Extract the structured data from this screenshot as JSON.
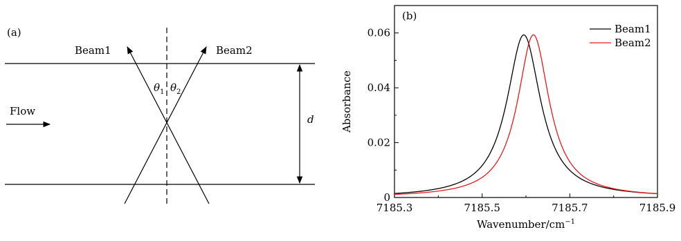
{
  "panel_a": {
    "label": "(a)",
    "beam1_label": "Beam1",
    "beam2_label": "Beam2",
    "flow_label": "Flow",
    "theta1_symbol": "θ",
    "theta1_sub": "1",
    "theta2_symbol": "θ",
    "theta2_sub": "2",
    "distance_label": "d"
  },
  "panel_b": {
    "label": "(b)"
  },
  "chart_data": {
    "type": "line",
    "title": "",
    "xlabel": "Wavenumber/cm",
    "xlabel_superscript": "−1",
    "ylabel": "Absorbance",
    "xlim": [
      7185.3,
      7185.9
    ],
    "ylim": [
      0,
      0.07
    ],
    "x_ticks": [
      7185.3,
      7185.5,
      7185.7,
      7185.9
    ],
    "x_tick_labels": [
      "7185.3",
      "7185.5",
      "7185.7",
      "7185.9"
    ],
    "y_ticks": [
      0,
      0.02,
      0.04,
      0.06
    ],
    "y_tick_labels": [
      "0",
      "0.02",
      "0.04",
      "0.06"
    ],
    "grid": false,
    "legend_position": "top-right",
    "series": [
      {
        "name": "Beam1",
        "color": "#000000",
        "center": 7185.595,
        "hwhm": 0.047,
        "peak": 0.0593
      },
      {
        "name": "Beam2",
        "color": "#e8191c",
        "center": 7185.617,
        "hwhm": 0.044,
        "peak": 0.0593
      }
    ]
  }
}
